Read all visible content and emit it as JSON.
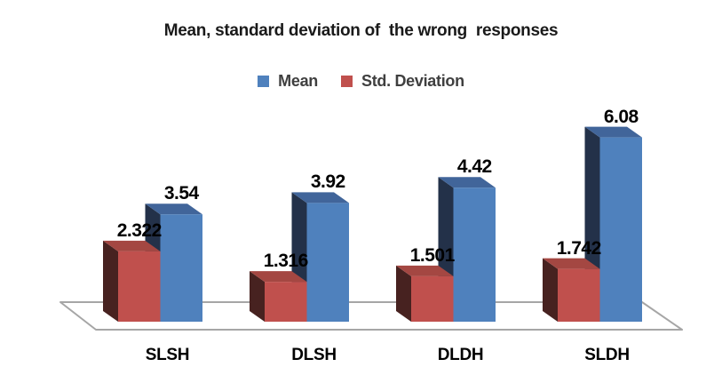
{
  "chart_data": {
    "type": "bar",
    "style": "3d-clustered",
    "title": "Mean, standard deviation of  the wrong  responses",
    "categories": [
      "SLSH",
      "DLSH",
      "DLDH",
      "SLDH"
    ],
    "series": [
      {
        "name": "Mean",
        "color": "#4F81BD",
        "color_top": "#41659A",
        "color_side": "#233149",
        "values": [
          3.54,
          3.92,
          4.42,
          6.08
        ],
        "labels": [
          "3.54",
          "3.92",
          "4.42",
          "6.08"
        ]
      },
      {
        "name": "Std. Deviation",
        "color": "#C0504D",
        "color_top": "#A44742",
        "color_side": "#472220",
        "values": [
          2.322,
          1.316,
          1.501,
          1.742
        ],
        "labels": [
          "2.322",
          "1.316",
          "1.501",
          "1.742"
        ]
      }
    ],
    "legend_position": "top",
    "gridlines": false,
    "value_axis_visible": false,
    "ylim": [
      0,
      6.5
    ],
    "floor_color": "#A6A6A6",
    "background": "#FFFFFF",
    "text_colors": {
      "title": "#1A1A1A",
      "legend": "#3F3F3F",
      "data_labels": "#000000",
      "category_labels": "#000000"
    }
  }
}
